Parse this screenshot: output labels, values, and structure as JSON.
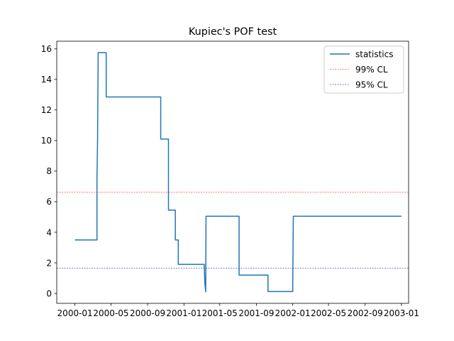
{
  "chart_data": {
    "type": "line",
    "title": "Kupiec's POF test",
    "xlabel": "",
    "ylabel": "",
    "xlim": [
      "1999-11-01",
      "2003-01-25"
    ],
    "ylim": [
      -0.65,
      16.5
    ],
    "grid": false,
    "legend_position": "top-right",
    "x_ticks": [
      "2000-01",
      "2000-05",
      "2000-09",
      "2001-01",
      "2001-05",
      "2001-09",
      "2002-01",
      "2002-05",
      "2002-09",
      "2003-01"
    ],
    "y_ticks": [
      0,
      2,
      4,
      6,
      8,
      10,
      12,
      14,
      16
    ],
    "series": [
      {
        "name": "statistics",
        "style": "solid",
        "color": "#1f77b4",
        "points": [
          [
            "2000-01-01",
            3.5
          ],
          [
            "2000-03-15",
            3.5
          ],
          [
            "2000-03-15",
            7.5
          ],
          [
            "2000-03-17",
            10.1
          ],
          [
            "2000-03-19",
            15.75
          ],
          [
            "2000-04-15",
            15.75
          ],
          [
            "2000-04-15",
            12.85
          ],
          [
            "2000-10-15",
            12.85
          ],
          [
            "2000-10-15",
            10.1
          ],
          [
            "2000-11-10",
            10.1
          ],
          [
            "2000-11-10",
            5.45
          ],
          [
            "2000-12-03",
            5.45
          ],
          [
            "2000-12-03",
            3.5
          ],
          [
            "2000-12-13",
            3.5
          ],
          [
            "2000-12-13",
            1.9
          ],
          [
            "2001-03-10",
            1.9
          ],
          [
            "2001-03-12",
            0.7
          ],
          [
            "2001-03-15",
            0.1
          ],
          [
            "2001-03-16",
            5.05
          ],
          [
            "2001-07-05",
            5.05
          ],
          [
            "2001-07-05",
            1.2
          ],
          [
            "2001-10-10",
            1.2
          ],
          [
            "2001-10-10",
            0.12
          ],
          [
            "2002-01-01",
            0.12
          ],
          [
            "2002-01-03",
            5.05
          ],
          [
            "2003-01-01",
            5.05
          ]
        ]
      },
      {
        "name": "99% CL",
        "style": "dashed",
        "color": "#ff0000",
        "value": 6.63
      },
      {
        "name": "95% CL",
        "style": "dashed",
        "color": "#0000cd",
        "value": 1.64
      }
    ]
  }
}
